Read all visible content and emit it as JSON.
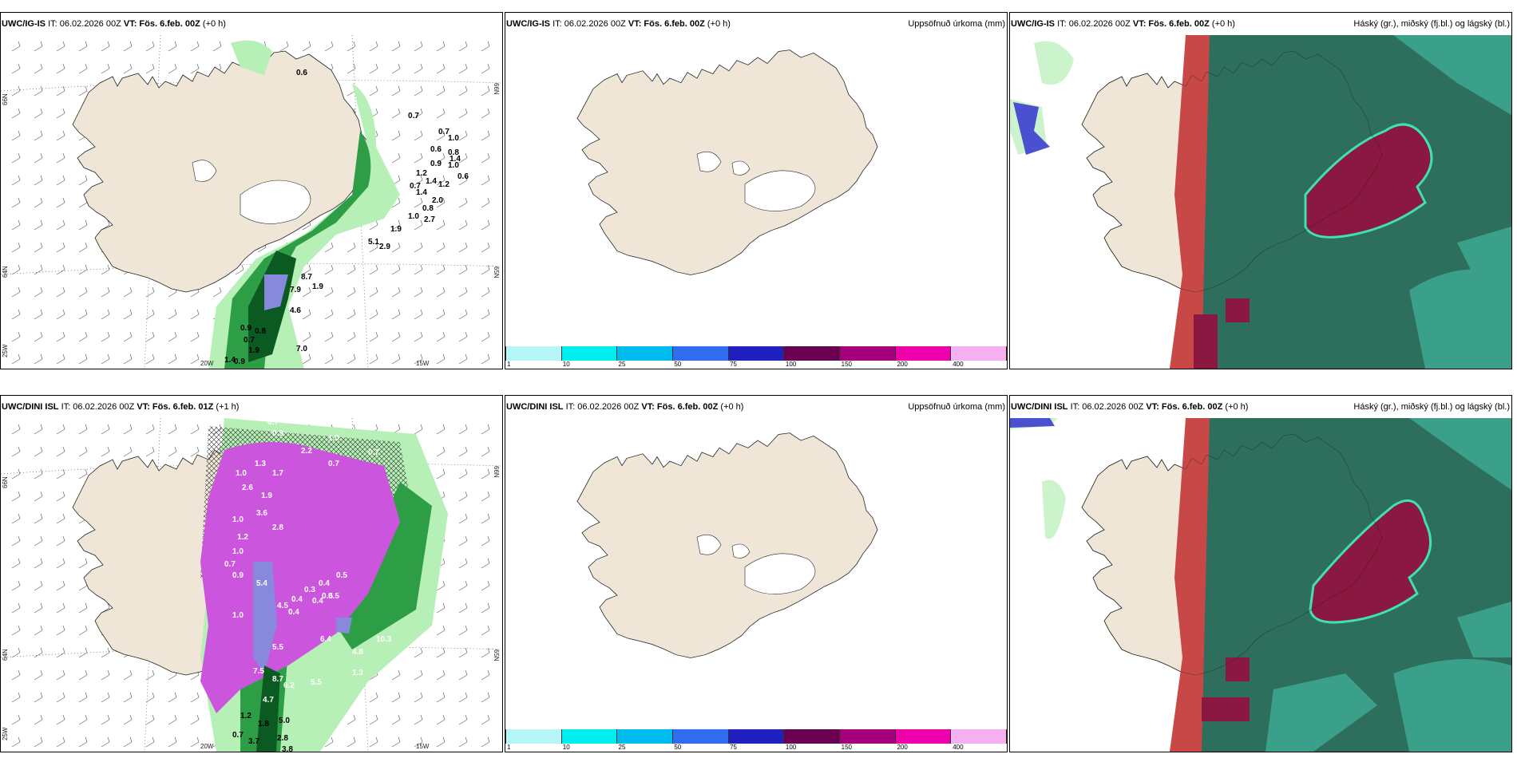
{
  "rows": [
    {
      "model_label": "UWC/IG-IS",
      "ig_panel": {
        "it": "IT: 06.02.2026 00Z",
        "vt_label": "VT:",
        "vt_value": "Fös. 6.feb. 00Z",
        "offset": "(+0 h)"
      },
      "precip_panel": {
        "it": "IT: 06.02.2026 00Z",
        "vt_label": "VT:",
        "vt_value": "Fös. 6.feb. 00Z",
        "offset": "(+0 h)",
        "right_title": "Uppsöfnuð úrkoma (mm)"
      },
      "cloud_panel": {
        "it": "IT: 06.02.2026 00Z",
        "vt_label": "VT:",
        "vt_value": "Fös. 6.feb. 00Z",
        "offset": "(+0 h)",
        "right_title": "Háský (gr.), miðský (fj.bl.) og lágský (bl.)"
      },
      "values": [
        "0.6",
        "0.7",
        "0.7",
        "1.0",
        "0.6",
        "0.8",
        "1.4",
        "0.9",
        "1.0",
        "1.2",
        "0.6",
        "0.7",
        "1.4",
        "1.2",
        "1.4",
        "2.0",
        "0.8",
        "1.0",
        "2.7",
        "1.9",
        "5.1",
        "2.9",
        "8.7",
        "1.9",
        "7.9",
        "4.6",
        "0.9",
        "0.8",
        "1.9",
        "0.7",
        "7.0",
        "1.4",
        "0.9"
      ]
    },
    {
      "model_label": "UWC/DINI ISL",
      "ig_panel": {
        "it": "IT: 06.02.2026 00Z",
        "vt_label": "VT:",
        "vt_value": "Fös. 6.feb. 01Z",
        "offset": "(+1 h)"
      },
      "precip_panel": {
        "it": "IT: 06.02.2026 00Z",
        "vt_label": "VT:",
        "vt_value": "Fös. 6.feb. 00Z",
        "offset": "(+0 h)",
        "right_title": "Uppsöfnuð úrkoma (mm)"
      },
      "cloud_panel": {
        "it": "IT: 06.02.2026 00Z",
        "vt_label": "VT:",
        "vt_value": "Fös. 6.feb. 00Z",
        "offset": "(+0 h)",
        "right_title": "Háský (gr.), miðský (fj.bl.) og lágský (bl.)"
      },
      "values": [
        "0.7",
        "0.8",
        "0.9",
        "1.0",
        "2.2",
        "0.7",
        "1.3",
        "1.0",
        "1.7",
        "0.7",
        "2.6",
        "1.9",
        "3.6",
        "2.8",
        "1.0",
        "1.2",
        "1.0",
        "0.7",
        "0.9",
        "5.4",
        "0.4",
        "0.4",
        "0.5",
        "4.5",
        "0.4",
        "1.0",
        "5.5",
        "6.4",
        "7.5",
        "8.7",
        "6.2",
        "5.5",
        "1.3",
        "4.7",
        "1.2",
        "1.8",
        "5.0",
        "0.7",
        "3.7",
        "2.8",
        "3.8",
        "0.5",
        "0.4",
        "0.3",
        "0.5",
        "10.3",
        "4.8"
      ]
    }
  ],
  "axis_labels": {
    "lat_66": "66N",
    "lat_64": "64N",
    "lat_65": "65N",
    "lon_25": "25W",
    "lon_20": "20W",
    "lon_15": "15W"
  },
  "colorbar": {
    "colors": [
      "#b6f6f6",
      "#00eeee",
      "#00bbee",
      "#2f6ef0",
      "#2020c0",
      "#6a0050",
      "#a4007c",
      "#ee00aa",
      "#f4b0f0"
    ],
    "ticks": [
      "1",
      "10",
      "25",
      "50",
      "75",
      "100",
      "150",
      "200",
      "400"
    ]
  },
  "colors": {
    "land": "#f0e6d8",
    "ocean": "#ffffff",
    "precip_light": "#b6f0b6",
    "precip_mid": "#2e9e46",
    "precip_dark": "#0b5a22",
    "precip_blue": "#8888dd",
    "precip_purple": "#cc55dd",
    "cloud_dark": "#2e6e5c",
    "cloud_teal": "#3aa08a",
    "cloud_red": "#c84848",
    "cloud_maroon": "#8a1840"
  }
}
